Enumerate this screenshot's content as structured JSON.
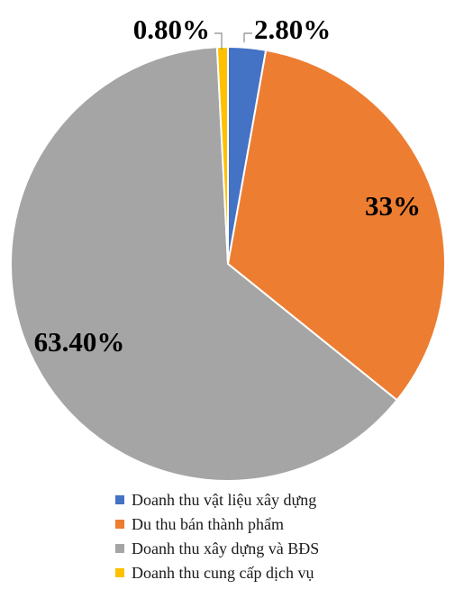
{
  "chart_data": {
    "type": "pie",
    "labels": [
      "Doanh thu vật liệu xây dựng",
      "Du thu bán thành phẩm",
      "Doanh thu xây dựng và BĐS",
      "Doanh thu cung cấp dịch vụ"
    ],
    "values": [
      2.8,
      33,
      63.4,
      0.8
    ],
    "value_labels": [
      "2.80%",
      "33%",
      "63.40%",
      "0.80%"
    ],
    "colors": [
      "#4472c4",
      "#ed7d31",
      "#a5a5a5",
      "#ffc000"
    ],
    "start_angle_deg": 0,
    "direction": "clockwise",
    "legend_position": "bottom"
  }
}
